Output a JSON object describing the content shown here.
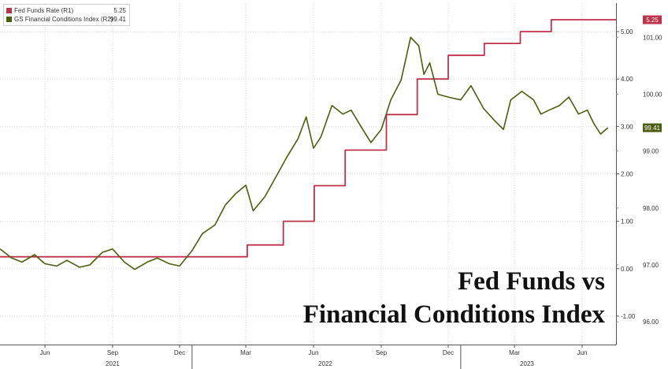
{
  "chart_data": {
    "type": "line",
    "title_lines": [
      "Fed Funds vs",
      "Financial Conditions Index"
    ],
    "legend": {
      "position": "top-left",
      "entries": [
        {
          "label": "Fed Funds Rate (R1)",
          "value": "5.25",
          "color": "#c0304a"
        },
        {
          "label": "GS Financial Conditions Index (R2)",
          "value": "99.41",
          "color": "#4a5e0e"
        }
      ]
    },
    "x_axis": {
      "range": [
        "2021-04-15",
        "2023-07-31"
      ],
      "month_ticks": [
        "Jun",
        "Sep",
        "Dec",
        "Mar",
        "Jun",
        "Sep",
        "Dec",
        "Mar",
        "Jun"
      ],
      "month_tick_dates": [
        "2021-06-15",
        "2021-09-15",
        "2021-12-15",
        "2022-03-15",
        "2022-06-15",
        "2022-09-15",
        "2022-12-15",
        "2023-03-15",
        "2023-06-15"
      ],
      "year_labels": [
        "2021",
        "2022",
        "2023"
      ],
      "year_label_dates": [
        "2021-09-15",
        "2022-07-01",
        "2023-04-01"
      ],
      "year_separator_dates": [
        "2022-01-01",
        "2023-01-01"
      ]
    },
    "y_axis_r1": {
      "name": "R1",
      "ticks": [
        -1,
        0,
        1,
        2,
        3,
        4,
        5
      ],
      "tick_labels": [
        "-1.00",
        "0.00",
        "1.00",
        "2.00",
        "3.00",
        "4.00",
        "5.00"
      ],
      "range": [
        -1.6,
        5.6
      ]
    },
    "y_axis_r2": {
      "name": "R2",
      "ticks": [
        96,
        97,
        98,
        99,
        100,
        101
      ],
      "tick_labels": [
        "96.00",
        "97.00",
        "98.00",
        "99.00",
        "100.00",
        "101.00"
      ],
      "range": [
        95.6,
        101.6
      ]
    },
    "grid": true,
    "end_tags": [
      {
        "series": "Fed Funds Rate",
        "text": "5.25",
        "color": "#c0304a"
      },
      {
        "series": "GS Financial Conditions Index",
        "text": "99.41",
        "color": "#4a5e0e"
      }
    ],
    "series": [
      {
        "name": "Fed Funds Rate",
        "axis": "R1",
        "color": "#c0304a",
        "shape": "step",
        "points": [
          [
            "2021-04-15",
            0.25
          ],
          [
            "2022-03-17",
            0.5
          ],
          [
            "2022-05-05",
            1.0
          ],
          [
            "2022-06-16",
            1.75
          ],
          [
            "2022-07-28",
            2.5
          ],
          [
            "2022-09-22",
            3.25
          ],
          [
            "2022-11-03",
            4.0
          ],
          [
            "2022-12-15",
            4.5
          ],
          [
            "2023-02-02",
            4.75
          ],
          [
            "2023-03-23",
            5.0
          ],
          [
            "2023-05-04",
            5.25
          ],
          [
            "2023-07-31",
            5.25
          ]
        ]
      },
      {
        "name": "GS Financial Conditions Index",
        "axis": "R2",
        "color": "#4a5e0e",
        "shape": "line",
        "points": [
          [
            "2021-04-15",
            97.28
          ],
          [
            "2021-05-01",
            97.12
          ],
          [
            "2021-05-15",
            97.05
          ],
          [
            "2021-06-01",
            97.18
          ],
          [
            "2021-06-15",
            97.02
          ],
          [
            "2021-07-01",
            96.98
          ],
          [
            "2021-07-15",
            97.08
          ],
          [
            "2021-08-01",
            96.96
          ],
          [
            "2021-08-15",
            97.0
          ],
          [
            "2021-09-01",
            97.22
          ],
          [
            "2021-09-15",
            97.28
          ],
          [
            "2021-10-01",
            97.05
          ],
          [
            "2021-10-15",
            96.92
          ],
          [
            "2021-11-01",
            97.05
          ],
          [
            "2021-11-15",
            97.12
          ],
          [
            "2021-12-01",
            97.02
          ],
          [
            "2021-12-15",
            96.98
          ],
          [
            "2022-01-01",
            97.25
          ],
          [
            "2022-01-15",
            97.55
          ],
          [
            "2022-02-01",
            97.7
          ],
          [
            "2022-02-15",
            98.05
          ],
          [
            "2022-03-01",
            98.25
          ],
          [
            "2022-03-15",
            98.4
          ],
          [
            "2022-03-25",
            97.95
          ],
          [
            "2022-04-10",
            98.2
          ],
          [
            "2022-04-25",
            98.55
          ],
          [
            "2022-05-10",
            98.9
          ],
          [
            "2022-05-25",
            99.22
          ],
          [
            "2022-06-05",
            99.6
          ],
          [
            "2022-06-15",
            99.05
          ],
          [
            "2022-06-25",
            99.25
          ],
          [
            "2022-07-10",
            99.8
          ],
          [
            "2022-07-25",
            99.65
          ],
          [
            "2022-08-05",
            99.72
          ],
          [
            "2022-08-20",
            99.4
          ],
          [
            "2022-09-01",
            99.15
          ],
          [
            "2022-09-15",
            99.38
          ],
          [
            "2022-09-28",
            99.9
          ],
          [
            "2022-10-12",
            100.25
          ],
          [
            "2022-10-25",
            101.0
          ],
          [
            "2022-11-05",
            100.85
          ],
          [
            "2022-11-12",
            100.35
          ],
          [
            "2022-11-20",
            100.55
          ],
          [
            "2022-12-01",
            100.0
          ],
          [
            "2022-12-15",
            99.95
          ],
          [
            "2023-01-01",
            99.9
          ],
          [
            "2023-01-15",
            100.15
          ],
          [
            "2023-02-01",
            99.75
          ],
          [
            "2023-02-15",
            99.55
          ],
          [
            "2023-02-28",
            99.38
          ],
          [
            "2023-03-10",
            99.9
          ],
          [
            "2023-03-25",
            100.05
          ],
          [
            "2023-04-10",
            99.9
          ],
          [
            "2023-04-20",
            99.65
          ],
          [
            "2023-05-01",
            99.72
          ],
          [
            "2023-05-15",
            99.8
          ],
          [
            "2023-05-28",
            99.95
          ],
          [
            "2023-06-10",
            99.65
          ],
          [
            "2023-06-22",
            99.72
          ],
          [
            "2023-07-01",
            99.48
          ],
          [
            "2023-07-10",
            99.3
          ],
          [
            "2023-07-20",
            99.41
          ]
        ]
      }
    ]
  }
}
